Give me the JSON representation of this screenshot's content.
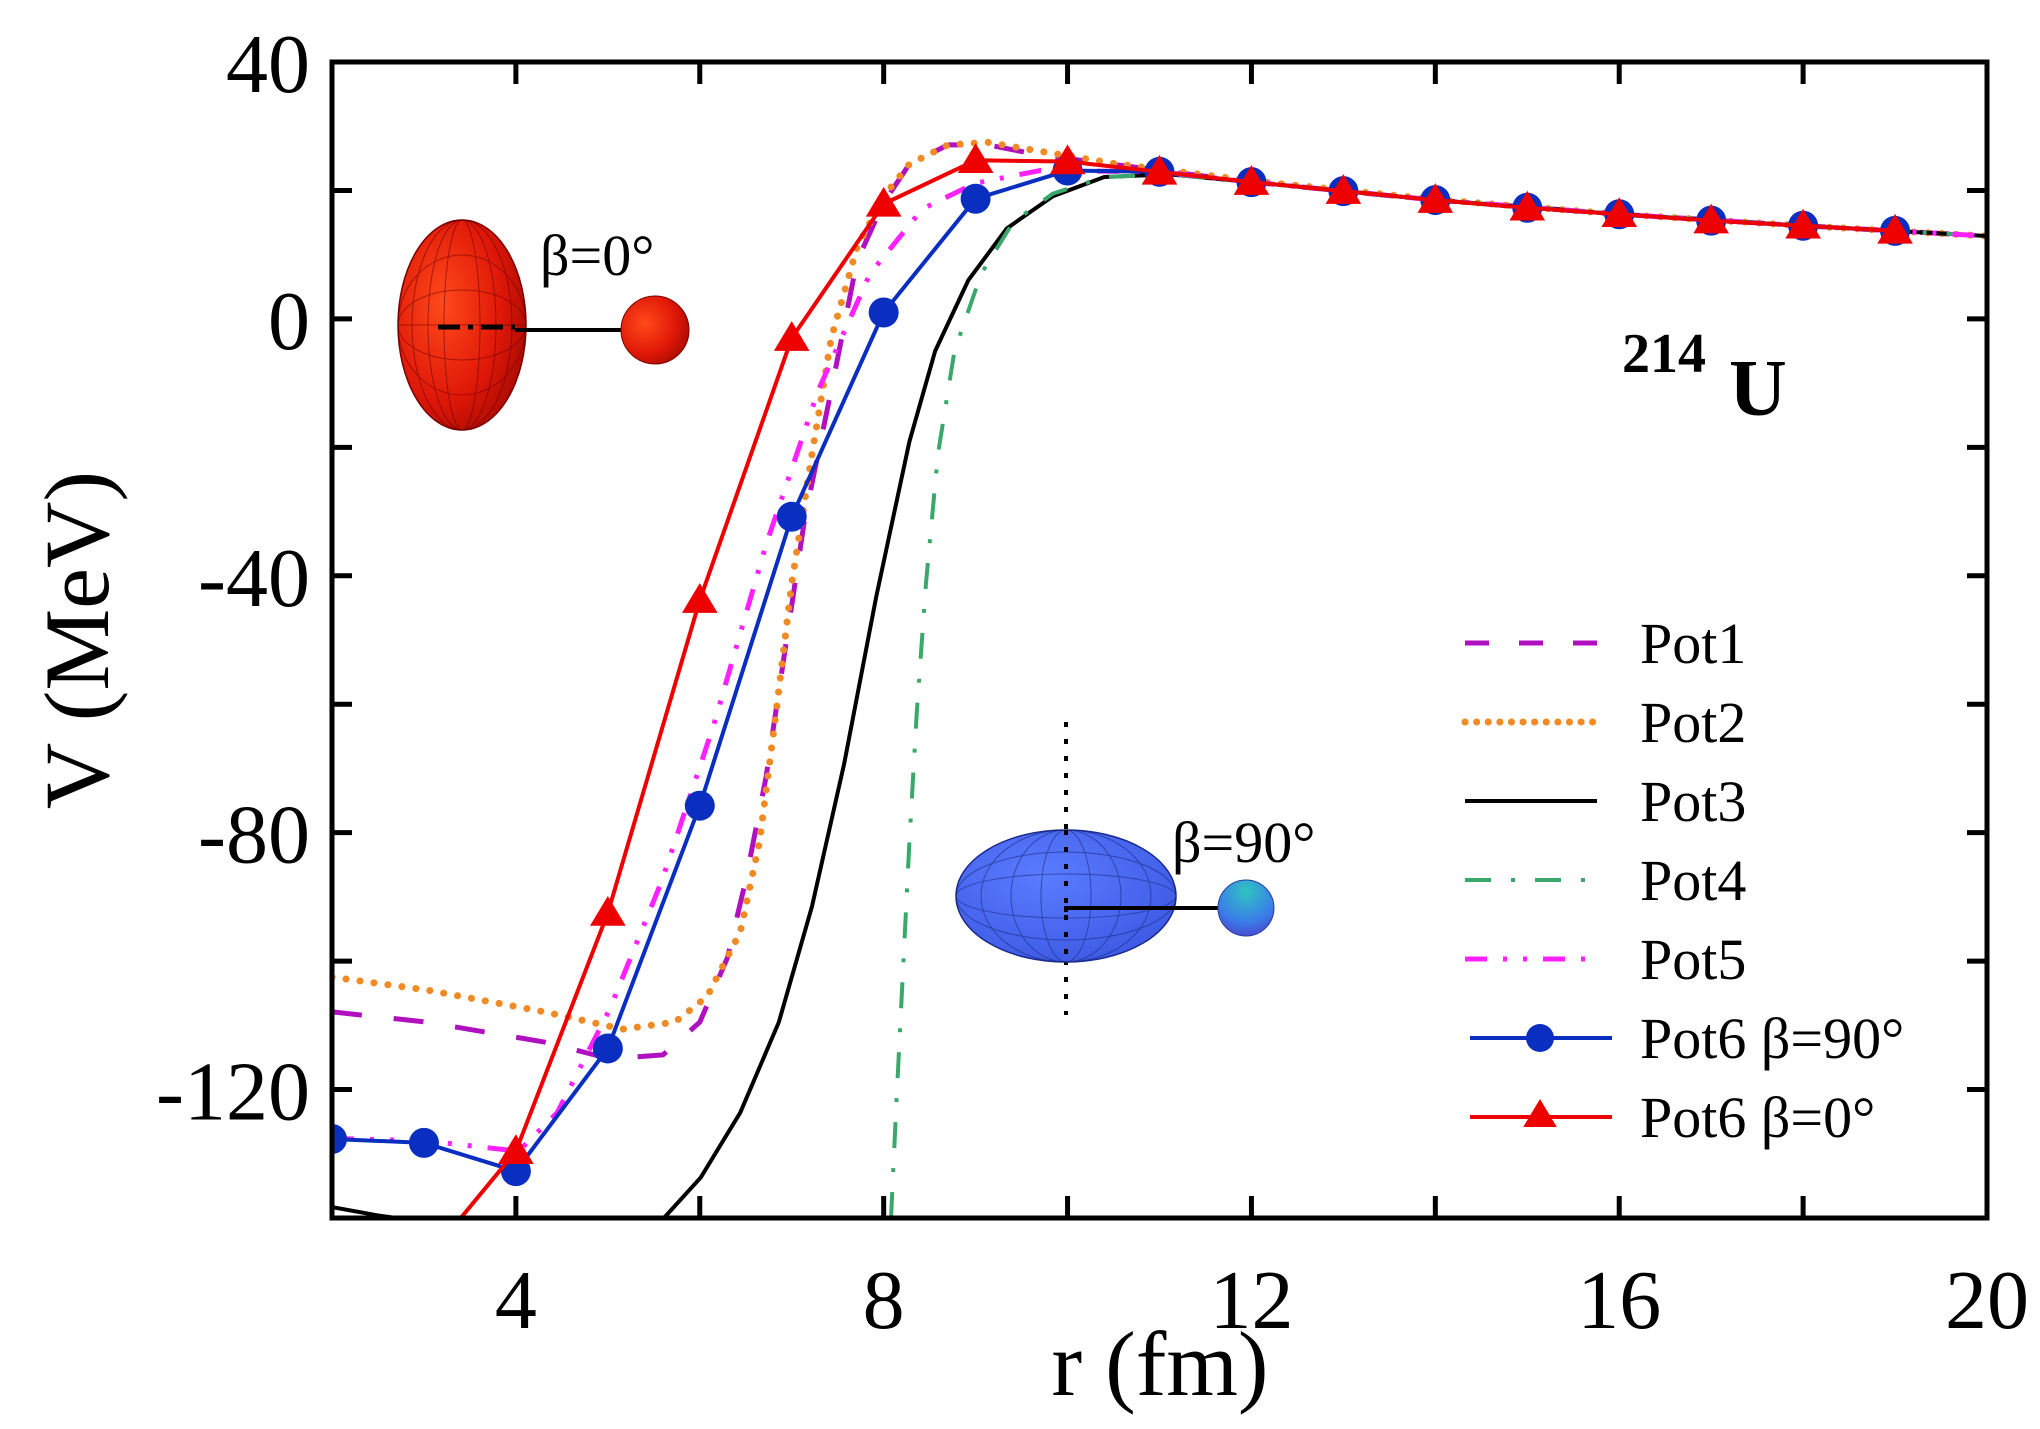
{
  "chart_data": {
    "type": "line",
    "title": "",
    "xlabel": "r (fm)",
    "ylabel": "V (MeV)",
    "xlim": [
      2,
      20
    ],
    "ylim": [
      -140,
      40
    ],
    "xticks": [
      4,
      8,
      12,
      16,
      20
    ],
    "xtick_labels": [
      "4",
      "8",
      "12",
      "16",
      "20"
    ],
    "yticks": [
      -120,
      -80,
      -40,
      0,
      40
    ],
    "ytick_labels": [
      "-120",
      "-80",
      "-40",
      "0",
      "40"
    ],
    "x_minor_step": 2,
    "y_minor_step": 20,
    "grid": false,
    "legend_position": "bottom-right",
    "annotations": {
      "nucleus": {
        "mass": "214",
        "symbol": "U"
      },
      "beta0_label": "β=0°",
      "beta90_label": "β=90°"
    },
    "series": [
      {
        "name": "Pot1",
        "color": "#b010c0",
        "style": "dashed",
        "marker": "none",
        "x": [
          2,
          3.03,
          4.31,
          5.02,
          5.6,
          6.0,
          6.3,
          6.5,
          6.72,
          6.93,
          7.14,
          7.43,
          7.71,
          8.0,
          8.28,
          8.7,
          9.13,
          9.7,
          10.8,
          12,
          14,
          16,
          18,
          20
        ],
        "y": [
          -107.9,
          -109.5,
          -112.6,
          -115.2,
          -114.6,
          -109.5,
          -99.5,
          -87.4,
          -71.4,
          -51.3,
          -31.2,
          -11.1,
          9.0,
          18.1,
          24.1,
          27.1,
          27.1,
          25.5,
          23.5,
          21.3,
          18.5,
          16.3,
          14.5,
          12.9
        ]
      },
      {
        "name": "Pot2",
        "color": "#f08a24",
        "style": "dotted",
        "marker": "none",
        "x": [
          2,
          3.03,
          4.31,
          5.16,
          5.73,
          6.08,
          6.44,
          6.65,
          6.83,
          7.0,
          7.22,
          7.43,
          7.71,
          8.0,
          8.28,
          8.7,
          9.13,
          9.7,
          10.55,
          12,
          14,
          16,
          18,
          20
        ],
        "y": [
          -102.5,
          -104.5,
          -107.9,
          -110.6,
          -109.5,
          -105.5,
          -95.5,
          -81.4,
          -61.3,
          -41.2,
          -21.1,
          -3.0,
          11.1,
          19.1,
          24.1,
          27.1,
          27.5,
          26.1,
          24.1,
          21.5,
          18.6,
          16.3,
          14.5,
          12.9
        ]
      },
      {
        "name": "Pot3",
        "color": "#000000",
        "style": "solid",
        "marker": "none",
        "x": [
          5.61,
          6.01,
          6.44,
          6.86,
          7.22,
          7.57,
          7.92,
          8.28,
          8.56,
          8.92,
          9.34,
          9.84,
          10.4,
          11.11,
          12,
          14,
          16,
          18,
          20
        ],
        "y": [
          -140,
          -133.7,
          -123.6,
          -109.5,
          -91.5,
          -69.3,
          -43.2,
          -19.1,
          -5.0,
          6.0,
          14.1,
          19.1,
          22.1,
          22.5,
          21.3,
          18.5,
          16.3,
          14.5,
          12.9
        ]
      },
      {
        "name": "Pot4",
        "color": "#3aa86a",
        "style": "dashdot",
        "marker": "none",
        "x": [
          8.08,
          8.14,
          8.21,
          8.28,
          8.36,
          8.46,
          8.59,
          8.77,
          9.06,
          9.41,
          9.84,
          10.4,
          11.11,
          12,
          14,
          16,
          18,
          20
        ],
        "y": [
          -140,
          -121.6,
          -101.5,
          -81.4,
          -61.3,
          -41.2,
          -21.1,
          -5.0,
          7.0,
          15.1,
          19.5,
          22.1,
          22.5,
          21.3,
          18.5,
          16.3,
          14.5,
          12.9
        ]
      },
      {
        "name": "Pot5",
        "color": "#ff20ff",
        "style": "dashdotdot",
        "marker": "none",
        "x": [
          2,
          3.03,
          4.03,
          4.45,
          5.02,
          5.59,
          6.15,
          6.72,
          7.29,
          7.85,
          8.42,
          8.99,
          9.7,
          11,
          12,
          14,
          16,
          18,
          20
        ],
        "y": [
          -127.6,
          -128.0,
          -129.6,
          -123.6,
          -107.5,
          -87.4,
          -63.3,
          -35.2,
          -11.1,
          7.0,
          17.1,
          21.1,
          23.1,
          22.9,
          21.3,
          18.5,
          16.3,
          14.5,
          12.9
        ]
      },
      {
        "name": "Pot6 β=90°",
        "color": "#0a2ec0",
        "style": "solid",
        "marker": "circle",
        "x": [
          2,
          3,
          4,
          5,
          6,
          7,
          8,
          9,
          10,
          11,
          12,
          13,
          14,
          15,
          16,
          17,
          18,
          19
        ],
        "y": [
          -127.7,
          -128.3,
          -132.7,
          -113.6,
          -75.8,
          -30.8,
          1.0,
          18.7,
          23.1,
          22.9,
          21.3,
          19.9,
          18.5,
          17.3,
          16.3,
          15.3,
          14.5,
          13.7
        ]
      },
      {
        "name": "Pot6 β=0°",
        "color": "#ee0000",
        "style": "solid",
        "marker": "triangle",
        "x": [
          4,
          5,
          6,
          7,
          8,
          9,
          10,
          11,
          12,
          13,
          14,
          15,
          16,
          17,
          18,
          19
        ],
        "y": [
          -129.6,
          -92.5,
          -43.8,
          -3.0,
          17.9,
          24.7,
          24.5,
          22.9,
          21.3,
          19.9,
          18.5,
          17.3,
          16.3,
          15.3,
          14.5,
          13.7
        ],
        "extends_below_to": {
          "x": 3.4,
          "y": -140
        }
      }
    ]
  }
}
